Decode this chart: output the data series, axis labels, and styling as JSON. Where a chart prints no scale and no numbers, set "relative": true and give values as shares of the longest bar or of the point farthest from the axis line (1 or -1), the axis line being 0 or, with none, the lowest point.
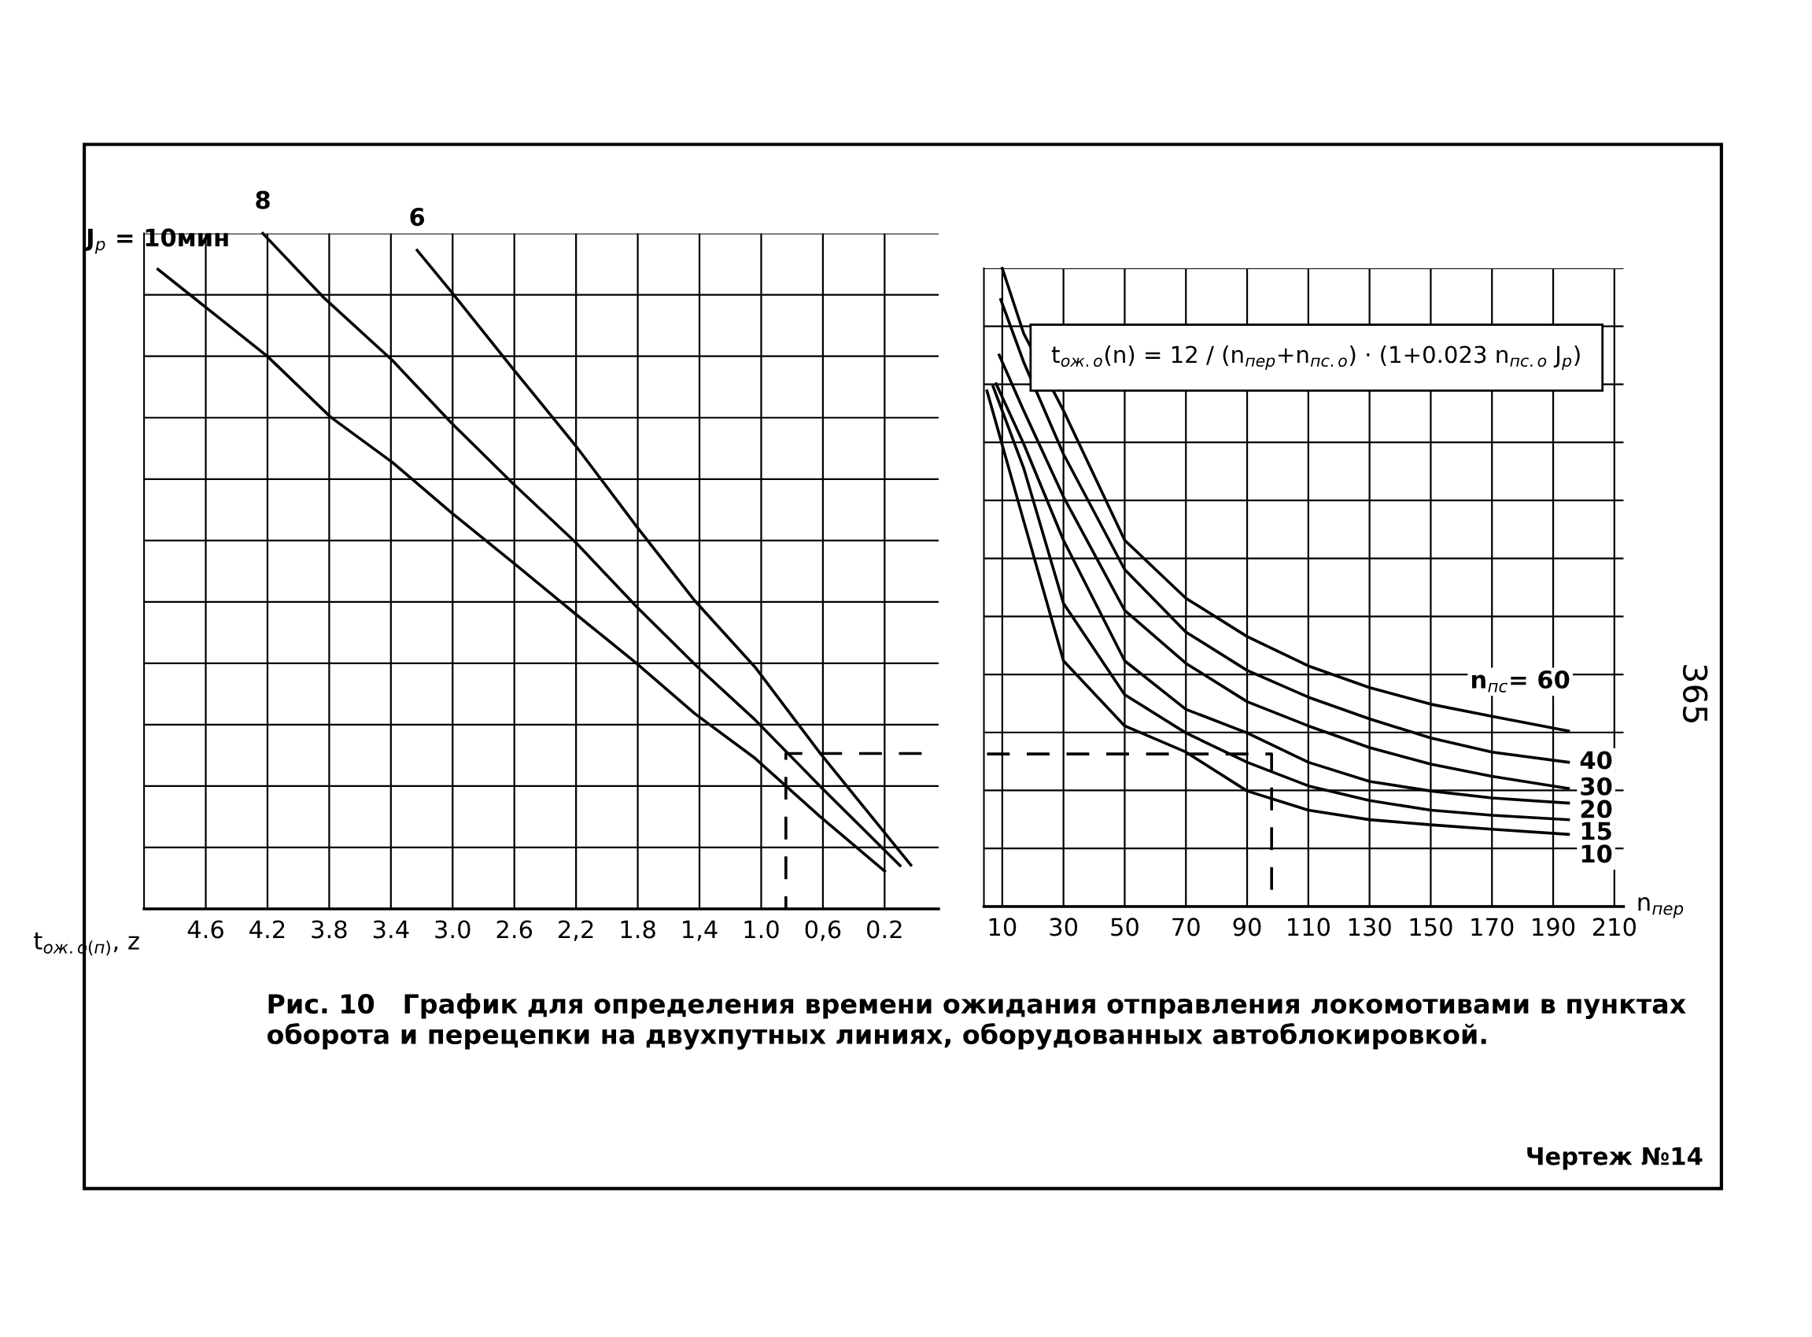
{
  "chart_data": [
    {
      "type": "line",
      "relative": true,
      "xlim": [
        5.0,
        -0.15
      ],
      "xticks": [
        4.6,
        4.2,
        3.8,
        3.4,
        {
          "value": 3.0,
          "label": "3.0"
        },
        2.6,
        {
          "value": 2.2,
          "label": "2,2"
        },
        1.8,
        {
          "value": 1.4,
          "label": "1,4"
        },
        {
          "value": 1.0,
          "label": "1.0"
        },
        {
          "value": 0.6,
          "label": "0,6"
        },
        0.2
      ],
      "xlabel": "t$_{ож.о(п)}$, z",
      "grid": true,
      "legend": false,
      "tick_labels": "x",
      "marker": "none",
      "series": [
        {
          "name": "J$_{р}$ = 10мин",
          "color": "#000000",
          "line_style": "solid",
          "x": [
            4.91,
            4.2,
            3.79,
            3.39,
            3.01,
            2.61,
            2.2,
            1.81,
            1.43,
            1.04,
            0.62,
            0.2
          ],
          "values": [
            0.947,
            0.818,
            0.728,
            0.661,
            0.587,
            0.513,
            0.436,
            0.364,
            0.289,
            0.223,
            0.137,
            0.056
          ]
        },
        {
          "name": "8",
          "color": "#000000",
          "line_style": "solid",
          "x": [
            4.23,
            3.84,
            3.39,
            3.01,
            2.61,
            2.2,
            1.81,
            1.43,
            1.04,
            0.62,
            0.1
          ],
          "values": [
            1.0,
            0.906,
            0.812,
            0.72,
            0.63,
            0.542,
            0.448,
            0.362,
            0.28,
            0.182,
            0.064
          ]
        },
        {
          "name": "6",
          "color": "#000000",
          "line_style": "solid",
          "x": [
            3.23,
            3.01,
            2.61,
            2.2,
            1.81,
            1.43,
            1.04,
            0.62,
            0.03
          ],
          "values": [
            0.975,
            0.914,
            0.8,
            0.685,
            0.567,
            0.456,
            0.358,
            0.231,
            0.065
          ]
        },
        {
          "color": "#000000",
          "line_style": "dashed",
          "x": [
            -0.04,
            0.84,
            0.84
          ],
          "values": [
            0.23,
            0.23,
            0
          ]
        }
      ],
      "annotations": [
        "Рис. 10   График для определения времени ожидания отправления локомотивами в пунктах оборота и перецепки на двухпутных линиях, оборудованных автоблокировкой."
      ]
    },
    {
      "type": "line",
      "relative": true,
      "xlim": [
        4,
        213
      ],
      "xticks": [
        10,
        30,
        50,
        70,
        90,
        110,
        130,
        150,
        170,
        190,
        210
      ],
      "xlabel": "n$_{пер}$",
      "grid": true,
      "legend": false,
      "tick_labels": "x",
      "marker": "none",
      "series": [
        {
          "name": "n$_{пс}$= 60",
          "color": "#000000",
          "line_style": "solid",
          "x": [
            10,
            17,
            30,
            50,
            70,
            90,
            110,
            130,
            150,
            170,
            195
          ],
          "values": [
            1.0,
            0.898,
            0.777,
            0.574,
            0.483,
            0.423,
            0.377,
            0.343,
            0.317,
            0.298,
            0.275
          ]
        },
        {
          "name": "40",
          "color": "#000000",
          "line_style": "solid",
          "x": [
            9.5,
            17,
            30,
            50,
            70,
            90,
            110,
            130,
            150,
            170,
            195
          ],
          "values": [
            0.951,
            0.853,
            0.709,
            0.528,
            0.43,
            0.37,
            0.328,
            0.294,
            0.264,
            0.242,
            0.226
          ]
        },
        {
          "name": "30",
          "color": "#000000",
          "line_style": "solid",
          "x": [
            9,
            17,
            30,
            50,
            70,
            90,
            110,
            130,
            150,
            170,
            195
          ],
          "values": [
            0.864,
            0.777,
            0.642,
            0.464,
            0.381,
            0.321,
            0.283,
            0.249,
            0.223,
            0.204,
            0.185
          ]
        },
        {
          "name": "20",
          "color": "#000000",
          "line_style": "solid",
          "x": [
            8,
            17,
            30,
            50,
            70,
            90,
            110,
            130,
            150,
            170,
            195
          ],
          "values": [
            0.819,
            0.725,
            0.574,
            0.385,
            0.309,
            0.272,
            0.226,
            0.196,
            0.181,
            0.17,
            0.162
          ]
        },
        {
          "name": "15",
          "color": "#000000",
          "line_style": "solid",
          "x": [
            7,
            17,
            30,
            50,
            70,
            90,
            110,
            130,
            150,
            170,
            195
          ],
          "values": [
            0.815,
            0.687,
            0.475,
            0.332,
            0.272,
            0.226,
            0.189,
            0.166,
            0.151,
            0.143,
            0.136
          ]
        },
        {
          "name": "10",
          "color": "#000000",
          "line_style": "solid",
          "x": [
            5,
            17,
            30,
            50,
            70,
            90,
            110,
            130,
            150,
            170,
            195
          ],
          "values": [
            0.808,
            0.604,
            0.385,
            0.283,
            0.242,
            0.181,
            0.151,
            0.136,
            0.128,
            0.121,
            0.113
          ]
        },
        {
          "color": "#000000",
          "line_style": "dashed",
          "x": [
            5,
            98,
            98
          ],
          "values": [
            0.239,
            0.239,
            0
          ]
        }
      ],
      "annotations": [
        "t$_{ож.о}$(n) = 12 / (n$_{пер}$+n$_{пс.о}$) · (1+0.023 n$_{пс.о}$ J$_{р}$)",
        "Чертеж №14",
        "365"
      ]
    }
  ]
}
